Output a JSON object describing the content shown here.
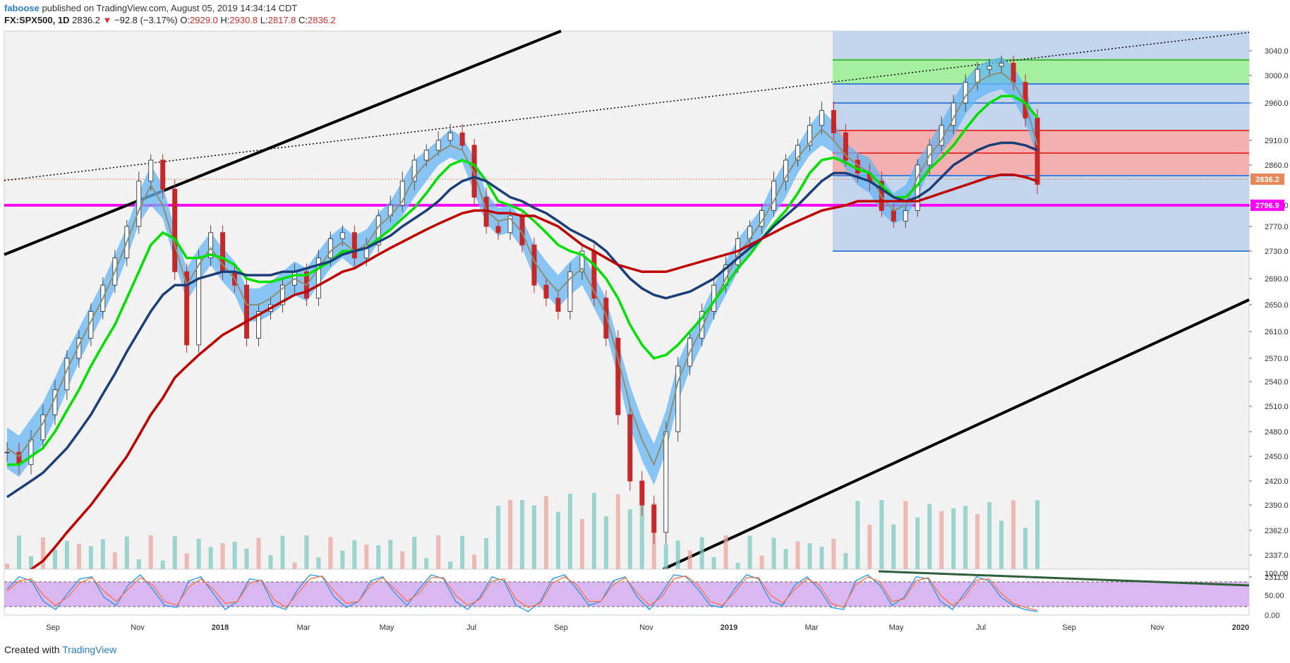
{
  "header": {
    "author": "faboose",
    "published_text": " published on TradingView.com, August 05, 2019 14:34:14 CDT",
    "symbol": "FX:SPX500, 1D",
    "last": "2836.2",
    "change_arrow": "▼",
    "change": "−92.8 (−3.17%)",
    "open_label": "O:",
    "open": "2929.0",
    "high_label": "H:",
    "high": "2930.8",
    "low_label": "L:",
    "low": "2817.8",
    "close_label": "C:",
    "close": "2836.2"
  },
  "footer": {
    "created_with": "Created with",
    "brand": "TradingView"
  },
  "colors": {
    "up": "#4a4a4a",
    "down": "#c62828",
    "ema_fast": "#8e8e72",
    "ema_mid": "#00e000",
    "ema_slow": "#1c3f7a",
    "ema_long": "#c00000",
    "band": "#64b5f6",
    "support": "#ff00ff",
    "fib_green": "#4caf50",
    "fib_red": "#e53935",
    "fib_blue": "#3f7fd6",
    "stoch_bg": "#d9b8f2",
    "stoch_k": "#2196f3",
    "stoch_d": "#ff7043"
  },
  "chart_data": [
    {
      "type": "line",
      "ylim": [
        2290,
        3060
      ],
      "y_ticks": [
        "3040.0",
        "3000.0",
        "2960.0",
        "2910.0",
        "2860.0",
        "2810.0",
        "2770.0",
        "2730.0",
        "2690.0",
        "2650.0",
        "2610.0",
        "2570.0",
        "2540.0",
        "2510.0",
        "2480.0",
        "2450.0",
        "2420.0",
        "2390.0",
        "2362.0",
        "2337.0",
        "2311.0"
      ],
      "x_ticks": [
        "Sep",
        "Nov",
        "2018",
        "Mar",
        "May",
        "Jul",
        "Sep",
        "Nov",
        "2019",
        "Mar",
        "May",
        "Jul",
        "Sep",
        "Nov",
        "2020"
      ],
      "price_badges": [
        {
          "label": "2836.2",
          "color": "#e8875a"
        },
        {
          "label": "2796.9",
          "color": "#ff00ff"
        }
      ],
      "series": [
        {
          "values": [
            2455,
            2440,
            2470,
            2500,
            2530,
            2570,
            2600,
            2640,
            2680,
            2720,
            2770,
            2840,
            2870,
            2830,
            2700,
            2590,
            2720,
            2760,
            2700,
            2680,
            2600,
            2640,
            2650,
            2680,
            2700,
            2660,
            2720,
            2750,
            2760,
            2720,
            2740,
            2790,
            2810,
            2840,
            2870,
            2890,
            2910,
            2920,
            2900,
            2820,
            2770,
            2760,
            2790,
            2740,
            2680,
            2660,
            2640,
            2700,
            2730,
            2660,
            2600,
            2500,
            2420,
            2390,
            2360,
            2480,
            2560,
            2600,
            2640,
            2680,
            2710,
            2750,
            2770,
            2800,
            2840,
            2870,
            2900,
            2930,
            2950,
            2920,
            2870,
            2850,
            2840,
            2800,
            2780,
            2800,
            2860,
            2900,
            2930,
            2960,
            2990,
            3010,
            3015,
            3020,
            2990,
            2940,
            2836
          ]
        },
        {
          "values": [
            2460,
            2450,
            2470,
            2490,
            2520,
            2555,
            2590,
            2625,
            2660,
            2700,
            2745,
            2800,
            2835,
            2810,
            2740,
            2680,
            2710,
            2735,
            2710,
            2690,
            2650,
            2650,
            2660,
            2675,
            2690,
            2680,
            2705,
            2730,
            2745,
            2730,
            2740,
            2770,
            2790,
            2815,
            2845,
            2865,
            2885,
            2900,
            2890,
            2850,
            2800,
            2780,
            2785,
            2760,
            2715,
            2690,
            2670,
            2690,
            2705,
            2670,
            2635,
            2570,
            2510,
            2470,
            2440,
            2480,
            2540,
            2580,
            2615,
            2655,
            2690,
            2725,
            2750,
            2780,
            2815,
            2845,
            2875,
            2905,
            2925,
            2910,
            2880,
            2860,
            2850,
            2820,
            2800,
            2810,
            2845,
            2880,
            2910,
            2940,
            2970,
            2990,
            3000,
            3005,
            2990,
            2960,
            2900
          ]
        },
        {
          "values": [
            2440,
            2440,
            2450,
            2460,
            2480,
            2505,
            2530,
            2560,
            2590,
            2620,
            2660,
            2700,
            2740,
            2760,
            2750,
            2720,
            2720,
            2725,
            2720,
            2710,
            2690,
            2685,
            2685,
            2690,
            2695,
            2695,
            2705,
            2715,
            2730,
            2730,
            2735,
            2750,
            2765,
            2785,
            2805,
            2825,
            2845,
            2860,
            2870,
            2860,
            2840,
            2815,
            2810,
            2800,
            2780,
            2760,
            2740,
            2730,
            2725,
            2710,
            2690,
            2660,
            2620,
            2590,
            2570,
            2575,
            2590,
            2610,
            2630,
            2655,
            2680,
            2705,
            2725,
            2750,
            2775,
            2800,
            2825,
            2850,
            2870,
            2875,
            2865,
            2855,
            2850,
            2835,
            2820,
            2820,
            2835,
            2855,
            2875,
            2900,
            2925,
            2945,
            2960,
            2970,
            2970,
            2960,
            2940
          ]
        },
        {
          "values": [
            2400,
            2410,
            2420,
            2430,
            2445,
            2460,
            2480,
            2500,
            2525,
            2550,
            2580,
            2610,
            2640,
            2665,
            2680,
            2680,
            2690,
            2695,
            2700,
            2700,
            2695,
            2695,
            2695,
            2700,
            2700,
            2705,
            2710,
            2715,
            2725,
            2730,
            2735,
            2745,
            2755,
            2770,
            2785,
            2800,
            2815,
            2830,
            2840,
            2845,
            2840,
            2830,
            2820,
            2815,
            2805,
            2795,
            2780,
            2765,
            2755,
            2745,
            2730,
            2710,
            2690,
            2675,
            2665,
            2660,
            2665,
            2670,
            2680,
            2690,
            2705,
            2720,
            2735,
            2750,
            2770,
            2790,
            2810,
            2825,
            2840,
            2850,
            2850,
            2845,
            2840,
            2830,
            2820,
            2815,
            2820,
            2830,
            2845,
            2860,
            2875,
            2890,
            2900,
            2905,
            2905,
            2900,
            2890
          ]
        },
        {
          "values": [
            2300,
            2310,
            2320,
            2330,
            2345,
            2360,
            2375,
            2390,
            2410,
            2430,
            2450,
            2475,
            2500,
            2520,
            2545,
            2560,
            2575,
            2590,
            2605,
            2615,
            2625,
            2635,
            2645,
            2655,
            2665,
            2670,
            2680,
            2690,
            2700,
            2705,
            2715,
            2725,
            2735,
            2745,
            2755,
            2765,
            2775,
            2785,
            2795,
            2800,
            2800,
            2795,
            2795,
            2790,
            2790,
            2780,
            2770,
            2755,
            2740,
            2730,
            2720,
            2710,
            2705,
            2700,
            2700,
            2700,
            2705,
            2710,
            2715,
            2720,
            2725,
            2730,
            2740,
            2750,
            2760,
            2770,
            2780,
            2790,
            2800,
            2805,
            2810,
            2815,
            2815,
            2815,
            2815,
            2815,
            2815,
            2820,
            2825,
            2830,
            2835,
            2840,
            2845,
            2848,
            2848,
            2845,
            2840
          ]
        }
      ]
    },
    {
      "type": "line",
      "ylim": [
        0,
        100
      ],
      "y_ticks": [
        "100.00",
        "50.00",
        "0.00"
      ],
      "series": [
        {
          "values": [
            60,
            90,
            80,
            30,
            10,
            50,
            85,
            90,
            40,
            20,
            70,
            95,
            60,
            20,
            15,
            80,
            90,
            50,
            10,
            30,
            85,
            80,
            20,
            10,
            60,
            95,
            90,
            40,
            15,
            30,
            80,
            90,
            50,
            20,
            60,
            95,
            85,
            30,
            10,
            40,
            90,
            80,
            20,
            5,
            30,
            85,
            95,
            60,
            20,
            30,
            80,
            90,
            40,
            10,
            50,
            95,
            90,
            60,
            20,
            15,
            60,
            95,
            85,
            30,
            20,
            70,
            90,
            60,
            15,
            10,
            80,
            95,
            70,
            20,
            40,
            90,
            85,
            30,
            10,
            50,
            90,
            80,
            40,
            20,
            10,
            5
          ]
        },
        {
          "values": [
            55,
            80,
            85,
            45,
            20,
            40,
            75,
            88,
            55,
            30,
            60,
            88,
            70,
            30,
            20,
            65,
            85,
            60,
            25,
            30,
            75,
            82,
            35,
            15,
            50,
            85,
            92,
            55,
            25,
            30,
            70,
            88,
            60,
            30,
            50,
            88,
            88,
            45,
            20,
            35,
            80,
            85,
            35,
            15,
            25,
            75,
            90,
            70,
            30,
            30,
            70,
            88,
            50,
            20,
            40,
            85,
            92,
            70,
            30,
            20,
            50,
            88,
            88,
            45,
            25,
            60,
            85,
            70,
            25,
            15,
            70,
            90,
            78,
            30,
            35,
            80,
            88,
            45,
            20,
            40,
            82,
            85,
            50,
            25,
            15,
            8
          ]
        }
      ]
    }
  ]
}
